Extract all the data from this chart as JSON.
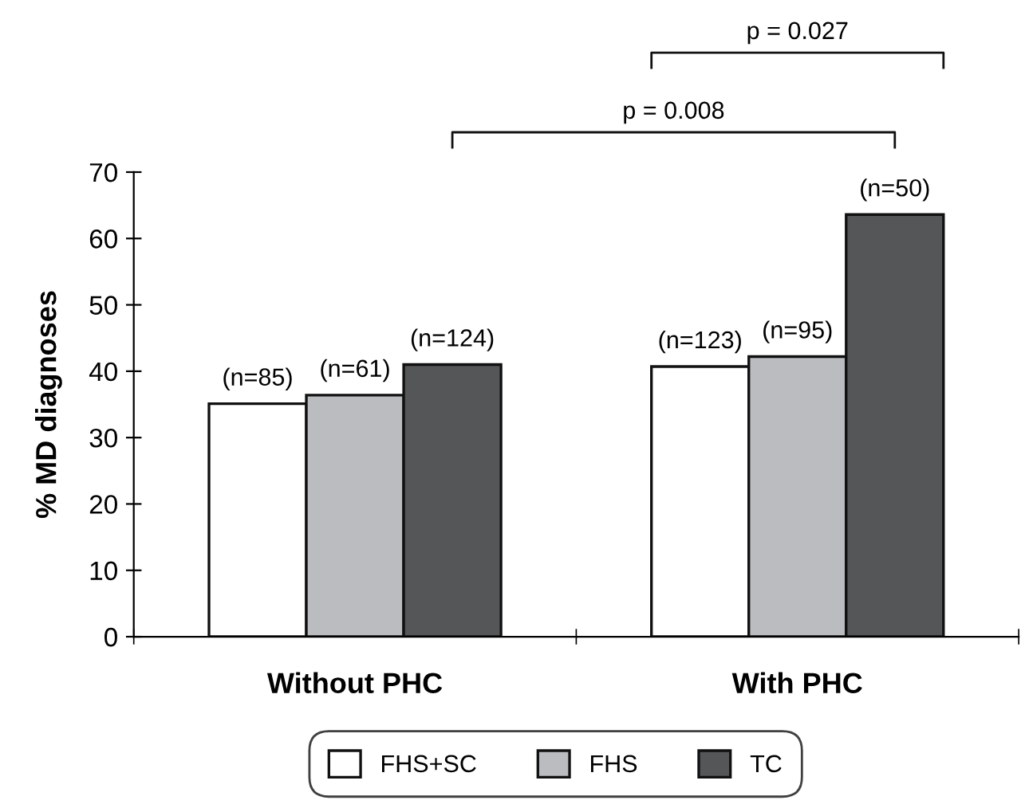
{
  "chart_data": {
    "type": "bar",
    "ylabel": "% MD diagnoses",
    "categories": [
      "Without PHC",
      "With PHC"
    ],
    "series": [
      {
        "name": "FHS+SC",
        "color": "#ffffff",
        "values": [
          35.1,
          40.7
        ]
      },
      {
        "name": "FHS",
        "color": "#bbbcc0",
        "values": [
          36.4,
          42.2
        ]
      },
      {
        "name": "TC",
        "color": "#555658",
        "values": [
          41.0,
          63.6
        ]
      }
    ],
    "ylim": [
      0,
      70
    ],
    "yticks": [
      0,
      10,
      20,
      30,
      40,
      50,
      60,
      70
    ],
    "grid": false,
    "legend": "bottom",
    "annotations": [
      "p = 0.027",
      "p = 0.008",
      "(n=85)",
      "(n=61)",
      "(n=124)",
      "(n=123)",
      "(n=95)",
      "(n=50)"
    ]
  }
}
